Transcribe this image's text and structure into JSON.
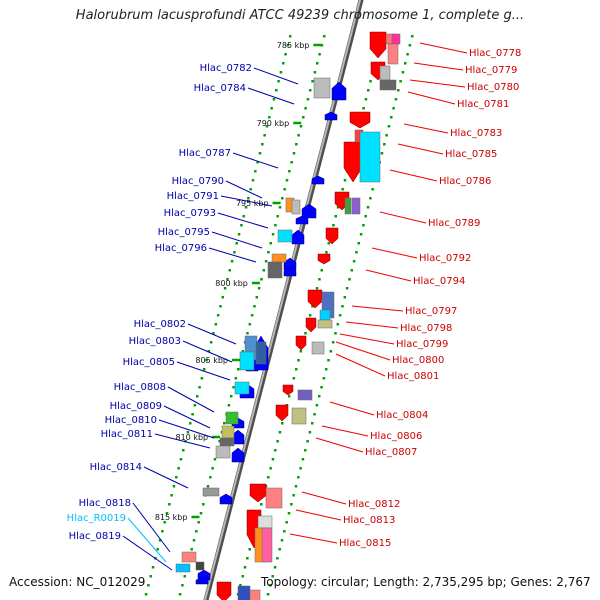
{
  "title": "Halorubrum lacusprofundi ATCC 49239 chromosome 1, complete g...",
  "footer": {
    "accession": "Accession: NC_012029",
    "summary": "Topology: circular; Length: 2,735,295 bp; Genes: 2,767"
  },
  "colors": {
    "forward": "#ff0000",
    "reverse": "#0000ff",
    "rna": "#00c0ff",
    "backbone": "#808080",
    "tick": "#00a000"
  },
  "ruler": [
    {
      "label": "785 kbp"
    },
    {
      "label": "790 kbp"
    },
    {
      "label": "795 kbp"
    },
    {
      "label": "800 kbp"
    },
    {
      "label": "805 kbp"
    },
    {
      "label": "810 kbp"
    },
    {
      "label": "815 kbp"
    }
  ],
  "left_labels": [
    {
      "name": "Hlac_0782",
      "type": "gene"
    },
    {
      "name": "Hlac_0784",
      "type": "gene"
    },
    {
      "name": "Hlac_0787",
      "type": "gene"
    },
    {
      "name": "Hlac_0790",
      "type": "gene"
    },
    {
      "name": "Hlac_0791",
      "type": "gene"
    },
    {
      "name": "Hlac_0793",
      "type": "gene"
    },
    {
      "name": "Hlac_0795",
      "type": "gene"
    },
    {
      "name": "Hlac_0796",
      "type": "gene"
    },
    {
      "name": "Hlac_0802",
      "type": "gene"
    },
    {
      "name": "Hlac_0803",
      "type": "gene"
    },
    {
      "name": "Hlac_0805",
      "type": "gene"
    },
    {
      "name": "Hlac_0808",
      "type": "gene"
    },
    {
      "name": "Hlac_0809",
      "type": "gene"
    },
    {
      "name": "Hlac_0810",
      "type": "gene"
    },
    {
      "name": "Hlac_0811",
      "type": "gene"
    },
    {
      "name": "Hlac_0814",
      "type": "gene"
    },
    {
      "name": "Hlac_0818",
      "type": "gene"
    },
    {
      "name": "Hlac_R0019",
      "type": "rna"
    },
    {
      "name": "Hlac_0819",
      "type": "gene"
    }
  ],
  "right_labels": [
    {
      "name": "Hlac_0778"
    },
    {
      "name": "Hlac_0779"
    },
    {
      "name": "Hlac_0780"
    },
    {
      "name": "Hlac_0781"
    },
    {
      "name": "Hlac_0783"
    },
    {
      "name": "Hlac_0785"
    },
    {
      "name": "Hlac_0786"
    },
    {
      "name": "Hlac_0789"
    },
    {
      "name": "Hlac_0792"
    },
    {
      "name": "Hlac_0794"
    },
    {
      "name": "Hlac_0797"
    },
    {
      "name": "Hlac_0798"
    },
    {
      "name": "Hlac_0799"
    },
    {
      "name": "Hlac_0800"
    },
    {
      "name": "Hlac_0801"
    },
    {
      "name": "Hlac_0804"
    },
    {
      "name": "Hlac_0806"
    },
    {
      "name": "Hlac_0807"
    },
    {
      "name": "Hlac_0812"
    },
    {
      "name": "Hlac_0813"
    },
    {
      "name": "Hlac_0815"
    }
  ]
}
